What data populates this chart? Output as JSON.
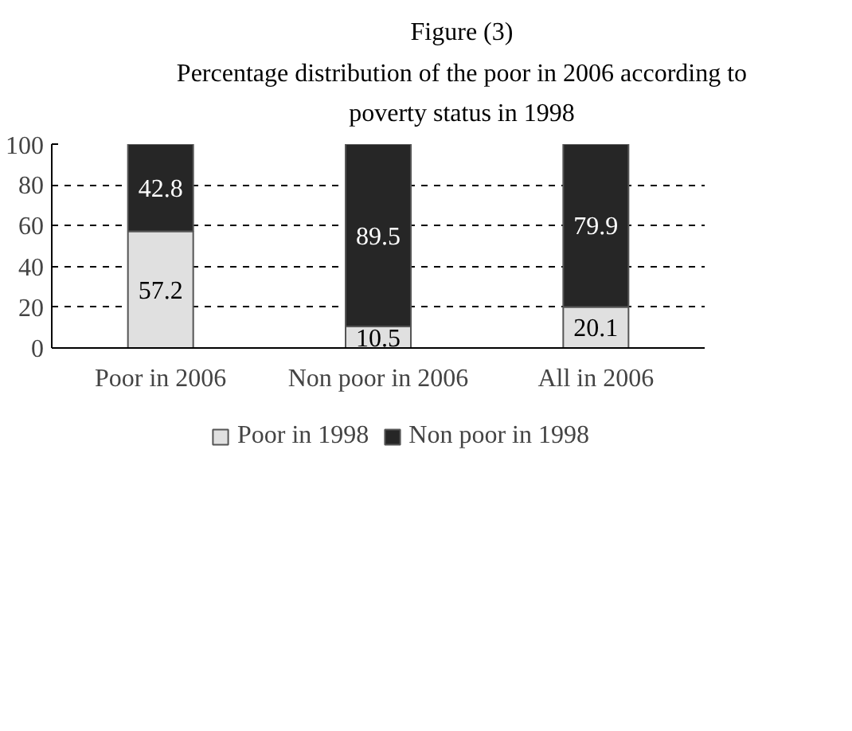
{
  "chart_data": {
    "type": "bar",
    "stacked": true,
    "title": "Figure (3)",
    "subtitle": "Percentage distribution of the poor in 2006  according to poverty status in 1998",
    "categories": [
      "Poor in 2006",
      "Non poor in 2006",
      "All in 2006"
    ],
    "series": [
      {
        "name": "Poor in 1998",
        "color": "#e0e0e0",
        "values": [
          57.2,
          10.5,
          20.1
        ]
      },
      {
        "name": "Non poor in 1998",
        "color": "#262626",
        "values": [
          42.8,
          89.5,
          79.9
        ]
      }
    ],
    "ylim": [
      0,
      100
    ],
    "yticks": [
      0,
      20,
      40,
      60,
      80,
      100
    ],
    "grid": "y",
    "legend": "bottom",
    "data_labels": true
  }
}
